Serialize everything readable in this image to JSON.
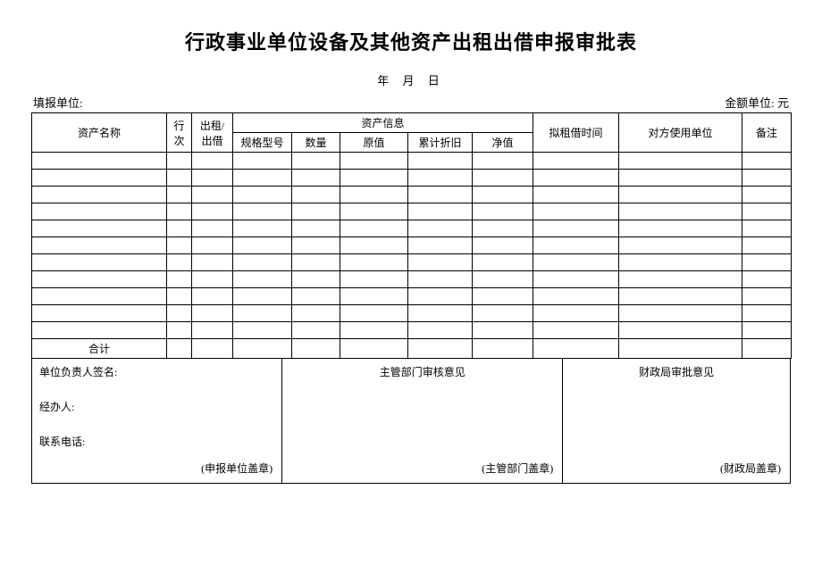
{
  "title": "行政事业单位设备及其他资产出租出借申报审批表",
  "date_line": "年 月 日",
  "meta": {
    "left": "填报单位:",
    "right": "金额单位: 元"
  },
  "headers": {
    "name": "资产名称",
    "rownum": "行次",
    "lease": "出租/出借",
    "info_group": "资产信息",
    "spec": "规格型号",
    "qty": "数量",
    "orig": "原值",
    "dep": "累计折旧",
    "net": "净值",
    "time": "拟租借时间",
    "user_unit": "对方使用单位",
    "note": "备注"
  },
  "rows": [
    {
      "name": "",
      "rownum": "",
      "lease": "",
      "spec": "",
      "qty": "",
      "orig": "",
      "dep": "",
      "net": "",
      "time": "",
      "user_unit": "",
      "note": ""
    },
    {
      "name": "",
      "rownum": "",
      "lease": "",
      "spec": "",
      "qty": "",
      "orig": "",
      "dep": "",
      "net": "",
      "time": "",
      "user_unit": "",
      "note": ""
    },
    {
      "name": "",
      "rownum": "",
      "lease": "",
      "spec": "",
      "qty": "",
      "orig": "",
      "dep": "",
      "net": "",
      "time": "",
      "user_unit": "",
      "note": ""
    },
    {
      "name": "",
      "rownum": "",
      "lease": "",
      "spec": "",
      "qty": "",
      "orig": "",
      "dep": "",
      "net": "",
      "time": "",
      "user_unit": "",
      "note": ""
    },
    {
      "name": "",
      "rownum": "",
      "lease": "",
      "spec": "",
      "qty": "",
      "orig": "",
      "dep": "",
      "net": "",
      "time": "",
      "user_unit": "",
      "note": ""
    },
    {
      "name": "",
      "rownum": "",
      "lease": "",
      "spec": "",
      "qty": "",
      "orig": "",
      "dep": "",
      "net": "",
      "time": "",
      "user_unit": "",
      "note": ""
    },
    {
      "name": "",
      "rownum": "",
      "lease": "",
      "spec": "",
      "qty": "",
      "orig": "",
      "dep": "",
      "net": "",
      "time": "",
      "user_unit": "",
      "note": ""
    },
    {
      "name": "",
      "rownum": "",
      "lease": "",
      "spec": "",
      "qty": "",
      "orig": "",
      "dep": "",
      "net": "",
      "time": "",
      "user_unit": "",
      "note": ""
    },
    {
      "name": "",
      "rownum": "",
      "lease": "",
      "spec": "",
      "qty": "",
      "orig": "",
      "dep": "",
      "net": "",
      "time": "",
      "user_unit": "",
      "note": ""
    },
    {
      "name": "",
      "rownum": "",
      "lease": "",
      "spec": "",
      "qty": "",
      "orig": "",
      "dep": "",
      "net": "",
      "time": "",
      "user_unit": "",
      "note": ""
    },
    {
      "name": "",
      "rownum": "",
      "lease": "",
      "spec": "",
      "qty": "",
      "orig": "",
      "dep": "",
      "net": "",
      "time": "",
      "user_unit": "",
      "note": ""
    }
  ],
  "total_label": "合计",
  "sig": {
    "left": {
      "leader": "单位负责人签名:",
      "operator": "经办人:",
      "phone": "联系电话:",
      "stamp": "(申报单位盖章)"
    },
    "mid": {
      "title": "主管部门审核意见",
      "stamp": "(主管部门盖章)"
    },
    "right": {
      "title": "财政局审批意见",
      "stamp": "(财政局盖章)"
    }
  },
  "layout": {
    "sig_col_widths": [
      "33%",
      "37%",
      "30%"
    ]
  }
}
